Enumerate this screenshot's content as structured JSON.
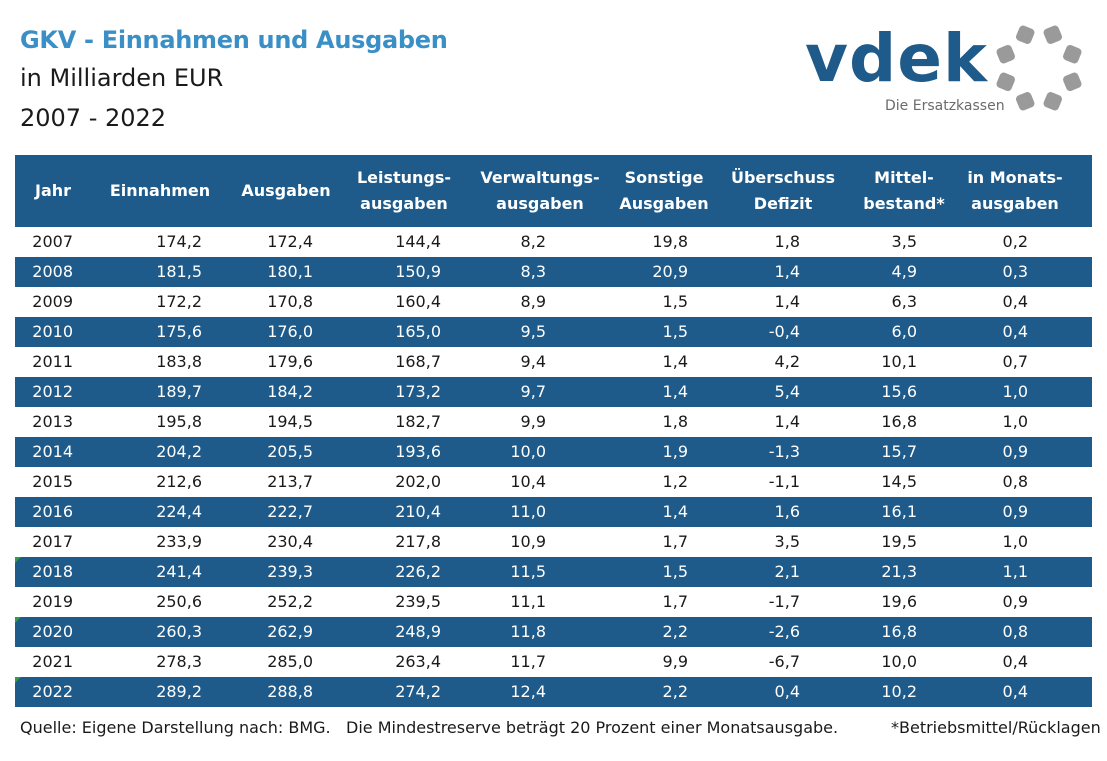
{
  "header": {
    "title": "GKV - Einnahmen und Ausgaben",
    "subtitle": "in Milliarden EUR",
    "period": "2007 - 2022"
  },
  "logo": {
    "word": "vdek",
    "tagline": "Die Ersatzkassen"
  },
  "table": {
    "columns": [
      "Jahr",
      "Einnahmen",
      "Ausgaben",
      "Leistungs-\nausgaben",
      "Verwaltungs-\nausgaben",
      "Sonstige\nAusgaben",
      "Überschuss\nDefizit",
      "Mittel-\nbestand*",
      "in Monats-\nausgaben"
    ],
    "rows": [
      [
        "2007",
        "174,2",
        "172,4",
        "144,4",
        "8,2",
        "19,8",
        "1,8",
        "3,5",
        "0,2"
      ],
      [
        "2008",
        "181,5",
        "180,1",
        "150,9",
        "8,3",
        "20,9",
        "1,4",
        "4,9",
        "0,3"
      ],
      [
        "2009",
        "172,2",
        "170,8",
        "160,4",
        "8,9",
        "1,5",
        "1,4",
        "6,3",
        "0,4"
      ],
      [
        "2010",
        "175,6",
        "176,0",
        "165,0",
        "9,5",
        "1,5",
        "-0,4",
        "6,0",
        "0,4"
      ],
      [
        "2011",
        "183,8",
        "179,6",
        "168,7",
        "9,4",
        "1,4",
        "4,2",
        "10,1",
        "0,7"
      ],
      [
        "2012",
        "189,7",
        "184,2",
        "173,2",
        "9,7",
        "1,4",
        "5,4",
        "15,6",
        "1,0"
      ],
      [
        "2013",
        "195,8",
        "194,5",
        "182,7",
        "9,9",
        "1,8",
        "1,4",
        "16,8",
        "1,0"
      ],
      [
        "2014",
        "204,2",
        "205,5",
        "193,6",
        "10,0",
        "1,9",
        "-1,3",
        "15,7",
        "0,9"
      ],
      [
        "2015",
        "212,6",
        "213,7",
        "202,0",
        "10,4",
        "1,2",
        "-1,1",
        "14,5",
        "0,8"
      ],
      [
        "2016",
        "224,4",
        "222,7",
        "210,4",
        "11,0",
        "1,4",
        "1,6",
        "16,1",
        "0,9"
      ],
      [
        "2017",
        "233,9",
        "230,4",
        "217,8",
        "10,9",
        "1,7",
        "3,5",
        "19,5",
        "1,0"
      ],
      [
        "2018",
        "241,4",
        "239,3",
        "226,2",
        "11,5",
        "1,5",
        "2,1",
        "21,3",
        "1,1"
      ],
      [
        "2019",
        "250,6",
        "252,2",
        "239,5",
        "11,1",
        "1,7",
        "-1,7",
        "19,6",
        "0,9"
      ],
      [
        "2020",
        "260,3",
        "262,9",
        "248,9",
        "11,8",
        "2,2",
        "-2,6",
        "16,8",
        "0,8"
      ],
      [
        "2021",
        "278,3",
        "285,0",
        "263,4",
        "11,7",
        "9,9",
        "-6,7",
        "10,0",
        "0,4"
      ],
      [
        "2022",
        "289,2",
        "288,8",
        "274,2",
        "12,4",
        "2,2",
        "0,4",
        "10,2",
        "0,4"
      ]
    ]
  },
  "footer": {
    "source": "Quelle: Eigene Darstellung nach: BMG.",
    "note": "Die Mindestreserve beträgt 20 Prozent einer Monatsausgabe.",
    "footnote": "*Betriebsmittel/Rücklagen"
  },
  "colors": {
    "title": "#3a8fc6",
    "header_bg": "#1f5b8a",
    "row_dark": "#1f5b8a",
    "row_light": "#ffffff",
    "marker": "#2e9e45",
    "logo_ring": "#9a9a9a"
  }
}
